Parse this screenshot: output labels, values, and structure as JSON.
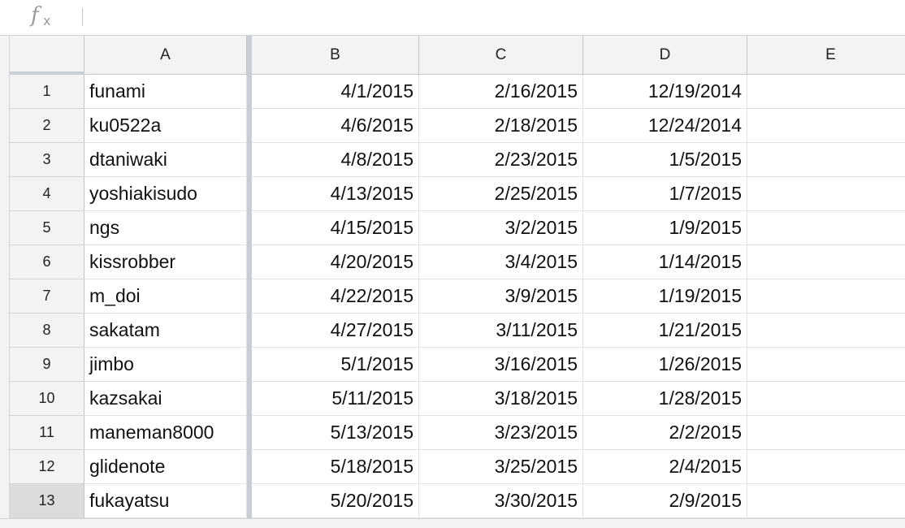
{
  "formula_bar": {
    "icon": "fx-icon",
    "value": ""
  },
  "columns": [
    "A",
    "B",
    "C",
    "D",
    "E"
  ],
  "rows": [
    {
      "num": "1",
      "cells": [
        "funami",
        "4/1/2015",
        "2/16/2015",
        "12/19/2014",
        ""
      ]
    },
    {
      "num": "2",
      "cells": [
        "ku0522a",
        "4/6/2015",
        "2/18/2015",
        "12/24/2014",
        ""
      ]
    },
    {
      "num": "3",
      "cells": [
        "dtaniwaki",
        "4/8/2015",
        "2/23/2015",
        "1/5/2015",
        ""
      ]
    },
    {
      "num": "4",
      "cells": [
        "yoshiakisudo",
        "4/13/2015",
        "2/25/2015",
        "1/7/2015",
        ""
      ]
    },
    {
      "num": "5",
      "cells": [
        "ngs",
        "4/15/2015",
        "3/2/2015",
        "1/9/2015",
        ""
      ]
    },
    {
      "num": "6",
      "cells": [
        "kissrobber",
        "4/20/2015",
        "3/4/2015",
        "1/14/2015",
        ""
      ]
    },
    {
      "num": "7",
      "cells": [
        "m_doi",
        "4/22/2015",
        "3/9/2015",
        "1/19/2015",
        ""
      ]
    },
    {
      "num": "8",
      "cells": [
        "sakatam",
        "4/27/2015",
        "3/11/2015",
        "1/21/2015",
        ""
      ]
    },
    {
      "num": "9",
      "cells": [
        "jimbo",
        "5/1/2015",
        "3/16/2015",
        "1/26/2015",
        ""
      ]
    },
    {
      "num": "10",
      "cells": [
        "kazsakai",
        "5/11/2015",
        "3/18/2015",
        "1/28/2015",
        ""
      ]
    },
    {
      "num": "11",
      "cells": [
        "maneman8000",
        "5/13/2015",
        "3/23/2015",
        "2/2/2015",
        ""
      ]
    },
    {
      "num": "12",
      "cells": [
        "glidenote",
        "5/18/2015",
        "3/25/2015",
        "2/4/2015",
        ""
      ]
    },
    {
      "num": "13",
      "cells": [
        "fukayatsu",
        "5/20/2015",
        "3/30/2015",
        "2/9/2015",
        ""
      ]
    }
  ],
  "selected_row": "13"
}
